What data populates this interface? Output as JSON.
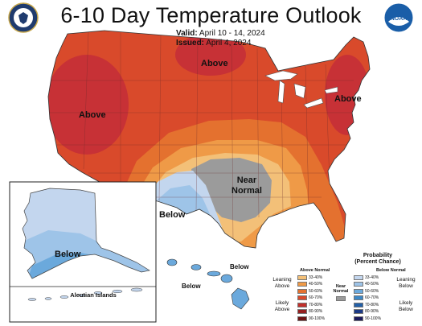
{
  "title": "6-10 Day Temperature Outlook",
  "valid_label": "Valid:",
  "valid_value": "April 10 - 14, 2024",
  "issued_label": "Issued:",
  "issued_value": "April 4, 2024",
  "regions": {
    "above_west": "Above",
    "above_north": "Above",
    "above_east": "Above",
    "near_normal": "Near\nNormal",
    "below_texas": "Below",
    "below_alaska": "Below",
    "below_hawaii_1": "Below",
    "below_hawaii_2": "Below",
    "aleutian": "Aleutian Islands"
  },
  "legend": {
    "title": "Probability\n(Percent Chance)",
    "above_head": "Above Normal",
    "below_head": "Below Normal",
    "near_head": "Near\nNormal",
    "leaning_above": "Leaning\nAbove",
    "likely_above": "Likely\nAbove",
    "leaning_below": "Leaning\nBelow",
    "likely_below": "Likely\nBelow",
    "above_rows": [
      {
        "label": "33-40%",
        "color": "#f3c078"
      },
      {
        "label": "40-50%",
        "color": "#ef9a47"
      },
      {
        "label": "50-60%",
        "color": "#e4712f"
      },
      {
        "label": "60-70%",
        "color": "#d94a2b"
      },
      {
        "label": "70-80%",
        "color": "#c2302b"
      },
      {
        "label": "80-90%",
        "color": "#962020"
      },
      {
        "label": "90-100%",
        "color": "#6d1414"
      }
    ],
    "below_rows": [
      {
        "label": "33-40%",
        "color": "#c3d6ee"
      },
      {
        "label": "40-50%",
        "color": "#9ec4e8"
      },
      {
        "label": "50-60%",
        "color": "#6ba9dc"
      },
      {
        "label": "60-70%",
        "color": "#3b87c6"
      },
      {
        "label": "70-80%",
        "color": "#2360a8"
      },
      {
        "label": "80-90%",
        "color": "#1b3a86"
      },
      {
        "label": "90-100%",
        "color": "#1b1b5c"
      }
    ],
    "near_color": "#9b9b9b"
  },
  "colors": {
    "above_33_40": "#f3c078",
    "above_40_50": "#ef9a47",
    "above_50_60": "#e4712f",
    "above_60_70": "#d94a2b",
    "above_70_80": "#c73136",
    "below_33_40": "#c3d6ee",
    "below_40_50": "#9ec4e8",
    "below_50_60": "#6ba9dc",
    "near": "#9b9b9b"
  }
}
